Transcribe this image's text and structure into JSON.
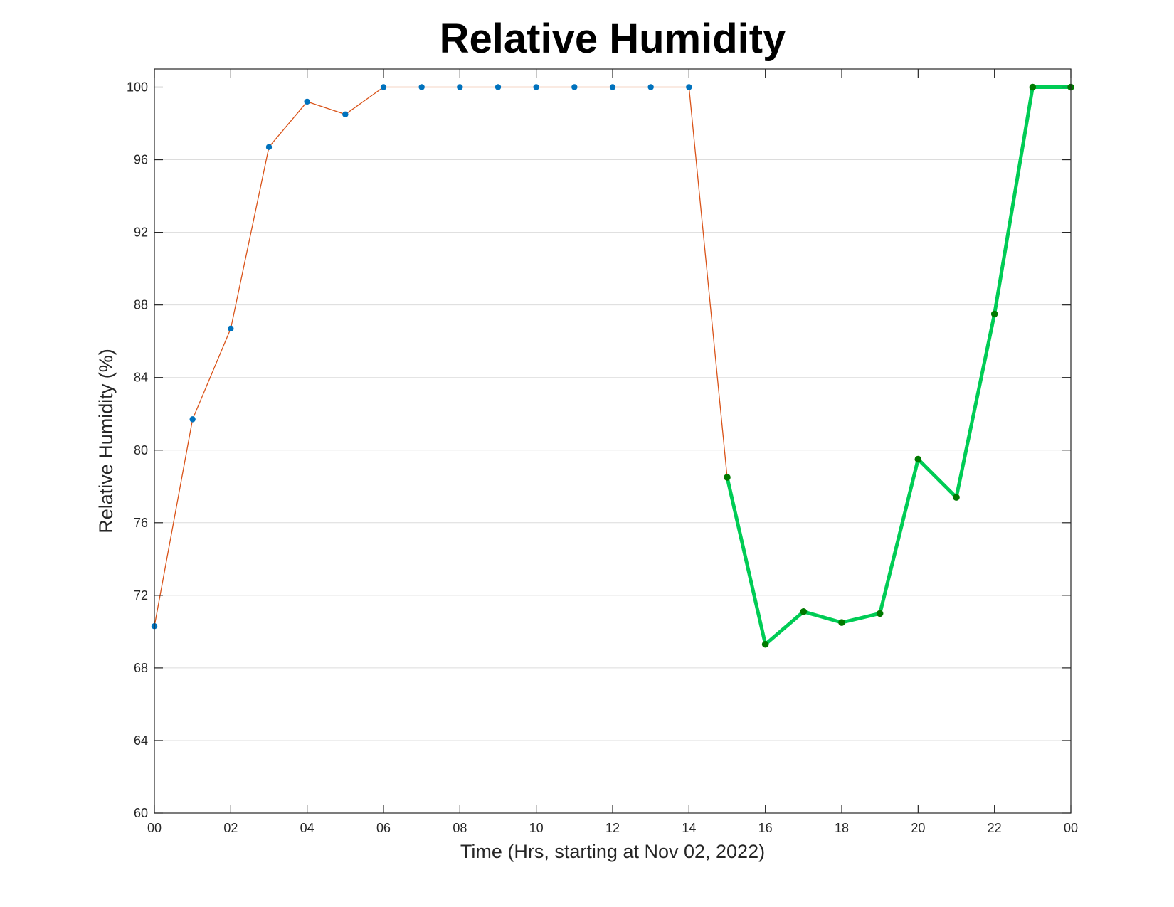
{
  "chart_data": {
    "type": "line",
    "title": "Relative Humidity",
    "xlabel": "Time (Hrs, starting at Nov 02, 2022)",
    "ylabel": "Relative Humidity (%)",
    "x_tick_labels": [
      "00",
      "02",
      "04",
      "06",
      "08",
      "10",
      "12",
      "14",
      "16",
      "18",
      "20",
      "22",
      "00"
    ],
    "y_tick_labels": [
      "60",
      "64",
      "68",
      "72",
      "76",
      "80",
      "84",
      "88",
      "92",
      "96",
      "100"
    ],
    "xlim": [
      0,
      24
    ],
    "ylim": [
      60,
      101
    ],
    "grid": "horizontal",
    "x": [
      0,
      1,
      2,
      3,
      4,
      5,
      6,
      7,
      8,
      9,
      10,
      11,
      12,
      13,
      14,
      15,
      16,
      17,
      18,
      19,
      20,
      21,
      22,
      23,
      24
    ],
    "values": [
      70.3,
      81.7,
      86.7,
      96.7,
      99.2,
      98.5,
      100,
      100,
      100,
      100,
      100,
      100,
      100,
      100,
      100,
      78.5,
      69.3,
      71.1,
      70.5,
      71.0,
      79.5,
      77.4,
      87.5,
      100,
      100
    ],
    "highlight_from_index": 15,
    "colors": {
      "line": "#d95319",
      "marker": "#0072bd",
      "highlight_line": "#00cc55",
      "highlight_marker": "#007a00"
    }
  }
}
